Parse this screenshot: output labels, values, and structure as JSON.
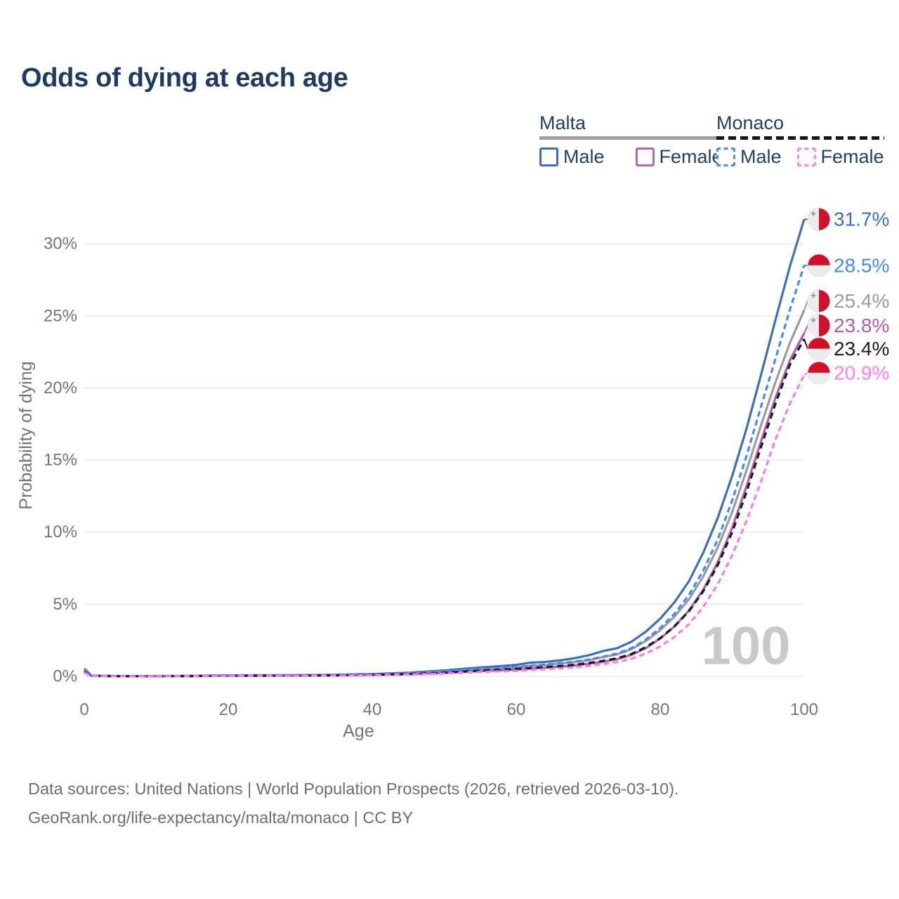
{
  "header": {
    "title": "Odds of dying at each age"
  },
  "legend": {
    "groups": [
      {
        "id": "malta",
        "name": "Malta",
        "line_style": "solid",
        "line_color": "#9e9e9e",
        "items": [
          {
            "label": "Male",
            "style": "solid",
            "color": "#3d6fb8"
          },
          {
            "label": "Female",
            "style": "solid",
            "color": "#b168b6"
          }
        ]
      },
      {
        "id": "monaco",
        "name": "Monaco",
        "line_style": "dashed",
        "line_color": "#161616",
        "items": [
          {
            "label": "Male",
            "style": "dashed",
            "color": "#4489f5"
          },
          {
            "label": "Female",
            "style": "dashed",
            "color": "#ff80f0"
          }
        ]
      }
    ]
  },
  "chart_data": {
    "type": "line",
    "title": "Odds of dying at each age",
    "xlabel": "Age",
    "ylabel": "Probability of dying",
    "xlim": [
      0,
      100
    ],
    "ylim_pct": [
      0,
      30
    ],
    "grid": "horizontal",
    "legend_position": "top-right",
    "age_watermark": "100",
    "x_ticks": [
      {
        "v": 0,
        "label": "0"
      },
      {
        "v": 20,
        "label": "20"
      },
      {
        "v": 40,
        "label": "40"
      },
      {
        "v": 60,
        "label": "60"
      },
      {
        "v": 80,
        "label": "80"
      },
      {
        "v": 100,
        "label": "100"
      }
    ],
    "y_ticks": [
      {
        "v": 0,
        "label": "0%"
      },
      {
        "v": 5,
        "label": "5%"
      },
      {
        "v": 10,
        "label": "10%"
      },
      {
        "v": 15,
        "label": "15%"
      },
      {
        "v": 20,
        "label": "20%"
      },
      {
        "v": 25,
        "label": "25%"
      },
      {
        "v": 30,
        "label": "30%"
      }
    ],
    "series": [
      {
        "id": "malta-male",
        "country": "Malta",
        "sex": "Male",
        "color": "#3d6fb8",
        "dash": "",
        "flag": "malta",
        "end_label": "31.7%",
        "label_color": "#3d6fb8",
        "label_dy": 0,
        "points": [
          [
            0,
            0.55
          ],
          [
            1,
            0.05
          ],
          [
            5,
            0.02
          ],
          [
            10,
            0.02
          ],
          [
            15,
            0.04
          ],
          [
            20,
            0.07
          ],
          [
            25,
            0.08
          ],
          [
            30,
            0.09
          ],
          [
            35,
            0.11
          ],
          [
            40,
            0.16
          ],
          [
            45,
            0.25
          ],
          [
            50,
            0.41
          ],
          [
            55,
            0.62
          ],
          [
            58,
            0.72
          ],
          [
            60,
            0.8
          ],
          [
            62,
            0.95
          ],
          [
            64,
            1.0
          ],
          [
            66,
            1.1
          ],
          [
            68,
            1.25
          ],
          [
            70,
            1.45
          ],
          [
            72,
            1.75
          ],
          [
            74,
            1.95
          ],
          [
            76,
            2.4
          ],
          [
            78,
            3.1
          ],
          [
            80,
            4.0
          ],
          [
            82,
            5.15
          ],
          [
            84,
            6.6
          ],
          [
            86,
            8.6
          ],
          [
            88,
            11.0
          ],
          [
            90,
            13.9
          ],
          [
            92,
            17.2
          ],
          [
            94,
            20.9
          ],
          [
            96,
            24.7
          ],
          [
            98,
            28.4
          ],
          [
            100,
            31.7
          ]
        ]
      },
      {
        "id": "malta-both",
        "country": "Malta",
        "sex": "Both",
        "color": "#9b9b9b",
        "dash": "",
        "flag": "malta",
        "end_label": "25.4%",
        "label_color": "#9b9b9b",
        "label_dy": -13,
        "points": [
          [
            0,
            0.5
          ],
          [
            1,
            0.045
          ],
          [
            5,
            0.018
          ],
          [
            10,
            0.018
          ],
          [
            15,
            0.03
          ],
          [
            20,
            0.05
          ],
          [
            25,
            0.06
          ],
          [
            30,
            0.07
          ],
          [
            35,
            0.09
          ],
          [
            40,
            0.13
          ],
          [
            45,
            0.2
          ],
          [
            50,
            0.32
          ],
          [
            55,
            0.49
          ],
          [
            58,
            0.57
          ],
          [
            60,
            0.63
          ],
          [
            62,
            0.73
          ],
          [
            64,
            0.79
          ],
          [
            66,
            0.88
          ],
          [
            68,
            0.98
          ],
          [
            70,
            1.12
          ],
          [
            72,
            1.33
          ],
          [
            74,
            1.52
          ],
          [
            76,
            1.88
          ],
          [
            78,
            2.45
          ],
          [
            80,
            3.2
          ],
          [
            82,
            4.15
          ],
          [
            84,
            5.35
          ],
          [
            86,
            6.95
          ],
          [
            88,
            8.95
          ],
          [
            90,
            11.4
          ],
          [
            92,
            14.3
          ],
          [
            94,
            17.4
          ],
          [
            96,
            20.4
          ],
          [
            98,
            23.1
          ],
          [
            100,
            25.4
          ]
        ]
      },
      {
        "id": "malta-female",
        "country": "Malta",
        "sex": "Female",
        "color": "#a95fb0",
        "dash": "",
        "flag": "malta",
        "end_label": "23.8%",
        "label_color": "#ac5cb4",
        "label_dy": -11,
        "points": [
          [
            0,
            0.45
          ],
          [
            1,
            0.04
          ],
          [
            5,
            0.015
          ],
          [
            10,
            0.015
          ],
          [
            15,
            0.02
          ],
          [
            20,
            0.035
          ],
          [
            25,
            0.04
          ],
          [
            30,
            0.05
          ],
          [
            35,
            0.065
          ],
          [
            40,
            0.1
          ],
          [
            45,
            0.15
          ],
          [
            50,
            0.24
          ],
          [
            55,
            0.37
          ],
          [
            58,
            0.43
          ],
          [
            60,
            0.47
          ],
          [
            62,
            0.54
          ],
          [
            64,
            0.6
          ],
          [
            66,
            0.67
          ],
          [
            68,
            0.75
          ],
          [
            70,
            0.87
          ],
          [
            72,
            1.01
          ],
          [
            74,
            1.19
          ],
          [
            76,
            1.49
          ],
          [
            78,
            1.96
          ],
          [
            80,
            2.62
          ],
          [
            82,
            3.47
          ],
          [
            84,
            4.57
          ],
          [
            86,
            6.02
          ],
          [
            88,
            7.92
          ],
          [
            90,
            10.3
          ],
          [
            92,
            13.2
          ],
          [
            94,
            16.3
          ],
          [
            96,
            19.3
          ],
          [
            98,
            21.9
          ],
          [
            100,
            23.8
          ]
        ]
      },
      {
        "id": "monaco-male",
        "country": "Monaco",
        "sex": "Male",
        "color": "#4489f5",
        "dash": "8 5",
        "flag": "monaco",
        "end_label": "28.5%",
        "label_color": "#4489f5",
        "label_dy": 0,
        "points": [
          [
            0,
            0.35
          ],
          [
            1,
            0.04
          ],
          [
            5,
            0.015
          ],
          [
            10,
            0.015
          ],
          [
            15,
            0.03
          ],
          [
            20,
            0.06
          ],
          [
            25,
            0.065
          ],
          [
            30,
            0.075
          ],
          [
            35,
            0.09
          ],
          [
            40,
            0.13
          ],
          [
            45,
            0.2
          ],
          [
            50,
            0.33
          ],
          [
            55,
            0.5
          ],
          [
            58,
            0.58
          ],
          [
            60,
            0.64
          ],
          [
            62,
            0.74
          ],
          [
            64,
            0.82
          ],
          [
            66,
            0.92
          ],
          [
            68,
            1.02
          ],
          [
            70,
            1.16
          ],
          [
            72,
            1.36
          ],
          [
            74,
            1.58
          ],
          [
            76,
            1.95
          ],
          [
            78,
            2.55
          ],
          [
            80,
            3.35
          ],
          [
            82,
            4.35
          ],
          [
            84,
            5.65
          ],
          [
            86,
            7.35
          ],
          [
            88,
            9.5
          ],
          [
            90,
            12.2
          ],
          [
            92,
            15.3
          ],
          [
            94,
            18.7
          ],
          [
            96,
            22.0
          ],
          [
            98,
            25.4
          ],
          [
            100,
            28.5
          ]
        ]
      },
      {
        "id": "monaco-both",
        "country": "Monaco",
        "sex": "Both",
        "color": "#1b1b1b",
        "dash": "9 6",
        "flag": "monaco",
        "end_label": "23.4%",
        "label_color": "#1b1b1b",
        "label_dy": 14,
        "points": [
          [
            0,
            0.3
          ],
          [
            1,
            0.035
          ],
          [
            5,
            0.012
          ],
          [
            10,
            0.012
          ],
          [
            15,
            0.02
          ],
          [
            20,
            0.04
          ],
          [
            25,
            0.045
          ],
          [
            30,
            0.055
          ],
          [
            35,
            0.07
          ],
          [
            40,
            0.105
          ],
          [
            45,
            0.16
          ],
          [
            50,
            0.26
          ],
          [
            55,
            0.4
          ],
          [
            58,
            0.46
          ],
          [
            60,
            0.51
          ],
          [
            62,
            0.58
          ],
          [
            64,
            0.64
          ],
          [
            66,
            0.71
          ],
          [
            68,
            0.8
          ],
          [
            70,
            0.92
          ],
          [
            72,
            1.07
          ],
          [
            74,
            1.25
          ],
          [
            76,
            1.55
          ],
          [
            78,
            2.02
          ],
          [
            80,
            2.65
          ],
          [
            82,
            3.48
          ],
          [
            84,
            4.52
          ],
          [
            86,
            5.92
          ],
          [
            88,
            7.72
          ],
          [
            90,
            10.0
          ],
          [
            92,
            12.8
          ],
          [
            94,
            15.9
          ],
          [
            96,
            18.9
          ],
          [
            98,
            21.6
          ],
          [
            100,
            23.4
          ]
        ]
      },
      {
        "id": "monaco-female",
        "country": "Monaco",
        "sex": "Female",
        "color": "#fb7af0",
        "dash": "8 5",
        "flag": "monaco",
        "end_label": "20.9%",
        "label_color": "#ff7df2",
        "label_dy": -3,
        "points": [
          [
            0,
            0.25
          ],
          [
            1,
            0.03
          ],
          [
            5,
            0.01
          ],
          [
            10,
            0.01
          ],
          [
            15,
            0.015
          ],
          [
            20,
            0.03
          ],
          [
            25,
            0.035
          ],
          [
            30,
            0.045
          ],
          [
            35,
            0.055
          ],
          [
            40,
            0.08
          ],
          [
            45,
            0.12
          ],
          [
            50,
            0.19
          ],
          [
            55,
            0.3
          ],
          [
            58,
            0.35
          ],
          [
            60,
            0.38
          ],
          [
            62,
            0.44
          ],
          [
            64,
            0.49
          ],
          [
            66,
            0.55
          ],
          [
            68,
            0.62
          ],
          [
            70,
            0.72
          ],
          [
            72,
            0.84
          ],
          [
            74,
            0.99
          ],
          [
            76,
            1.22
          ],
          [
            78,
            1.58
          ],
          [
            80,
            2.08
          ],
          [
            82,
            2.74
          ],
          [
            84,
            3.62
          ],
          [
            86,
            4.82
          ],
          [
            88,
            6.4
          ],
          [
            90,
            8.4
          ],
          [
            92,
            10.8
          ],
          [
            94,
            13.5
          ],
          [
            96,
            16.4
          ],
          [
            98,
            18.9
          ],
          [
            100,
            20.9
          ]
        ]
      }
    ],
    "flag_colors": {
      "red": "#d0112b",
      "white": "#ededed",
      "cross": "#8f8f8f"
    }
  },
  "footer": {
    "line1": "Data sources: United Nations | World Population Prospects (2026, retrieved 2026-03-10).",
    "line2": "GeoRank.org/life-expectancy/malta/monaco | CC BY"
  }
}
